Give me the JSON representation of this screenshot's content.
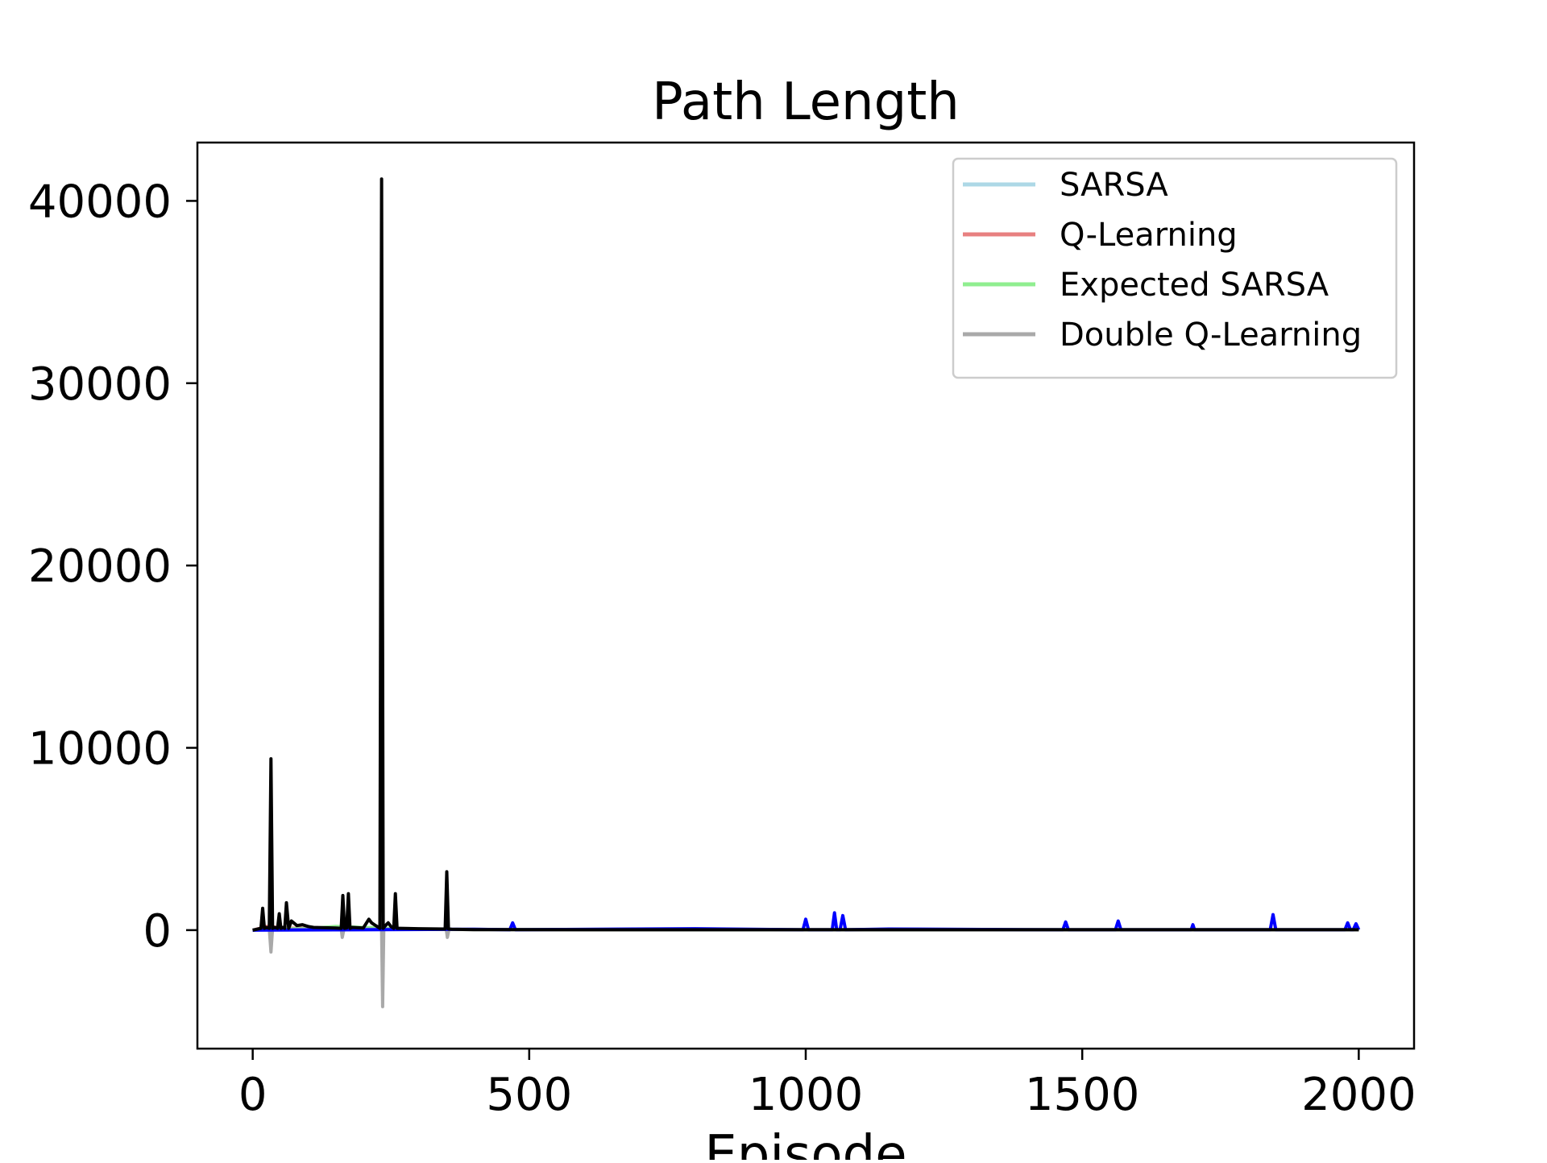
{
  "chart_data": {
    "type": "line",
    "title": "Path Length",
    "xlabel": "Episode",
    "ylabel": "",
    "xlim": [
      -100,
      2100
    ],
    "ylim": [
      -6500,
      43200
    ],
    "xticks": [
      0,
      500,
      1000,
      1500,
      2000
    ],
    "xtick_labels": [
      "0",
      "500",
      "1000",
      "1500",
      "2000"
    ],
    "yticks": [
      0,
      10000,
      20000,
      30000,
      40000
    ],
    "ytick_labels": [
      "0",
      "10000",
      "20000",
      "30000",
      "40000"
    ],
    "grid": false,
    "legend_position": "top-right",
    "legend": [
      {
        "label": "SARSA",
        "color": "#add8e6"
      },
      {
        "label": "Q-Learning",
        "color": "#e88080"
      },
      {
        "label": "Expected SARSA",
        "color": "#90ee90"
      },
      {
        "label": "Double Q-Learning",
        "color": "#a9a9a9"
      }
    ],
    "series": [
      {
        "name": "SARSA",
        "color": "#add8e6",
        "x": [
          0,
          25,
          100,
          300,
          600,
          1000,
          1500,
          2000
        ],
        "y": [
          0,
          150,
          80,
          40,
          30,
          20,
          20,
          20
        ]
      },
      {
        "name": "Q-Learning",
        "color": "#e88080",
        "x": [
          0,
          25,
          60,
          120,
          200,
          300,
          500,
          1000,
          2000
        ],
        "y": [
          0,
          200,
          120,
          80,
          60,
          40,
          30,
          20,
          20
        ]
      },
      {
        "name": "Expected SARSA",
        "color": "#90ee90",
        "x": [
          0,
          30,
          100,
          150,
          300,
          600,
          1000,
          2000
        ],
        "y": [
          0,
          100,
          80,
          200,
          40,
          30,
          20,
          20
        ]
      },
      {
        "name": "Double Q-Learning",
        "color": "#a9a9a9",
        "x": [
          0,
          20,
          30,
          33,
          36,
          60,
          160,
          162,
          165,
          233,
          235,
          237,
          260,
          350,
          352,
          355,
          500,
          2000
        ],
        "y": [
          0,
          50,
          100,
          -1200,
          100,
          50,
          50,
          -400,
          50,
          50,
          -4200,
          50,
          50,
          50,
          -400,
          50,
          30,
          20
        ]
      },
      {
        "color": "#0000ff",
        "x": [
          0,
          200,
          400,
          465,
          470,
          475,
          800,
          995,
          1000,
          1005,
          1048,
          1052,
          1056,
          1062,
          1067,
          1072,
          1150,
          1465,
          1470,
          1475,
          1560,
          1565,
          1570,
          1697,
          1700,
          1703,
          1840,
          1845,
          1850,
          1975,
          1980,
          1985,
          1990,
          1995,
          2000
        ],
        "y": [
          0,
          20,
          50,
          20,
          400,
          20,
          80,
          20,
          600,
          20,
          20,
          950,
          20,
          20,
          800,
          20,
          60,
          20,
          450,
          20,
          20,
          500,
          20,
          20,
          300,
          20,
          20,
          850,
          20,
          20,
          400,
          20,
          20,
          350,
          20
        ]
      },
      {
        "color": "#000000",
        "x": [
          0,
          15,
          18,
          21,
          25,
          30,
          33,
          36,
          40,
          45,
          48,
          51,
          55,
          58,
          61,
          65,
          70,
          80,
          90,
          100,
          110,
          150,
          160,
          163,
          166,
          170,
          173,
          176,
          180,
          200,
          210,
          215,
          220,
          230,
          233,
          236,
          240,
          245,
          250,
          255,
          258,
          261,
          265,
          300,
          348,
          351,
          354,
          360,
          400,
          600,
          1000,
          2000
        ],
        "y": [
          0,
          100,
          1200,
          100,
          150,
          100,
          9400,
          100,
          150,
          100,
          900,
          100,
          150,
          100,
          1500,
          100,
          500,
          250,
          300,
          200,
          150,
          120,
          100,
          1900,
          100,
          120,
          2000,
          100,
          150,
          120,
          600,
          400,
          300,
          100,
          41200,
          100,
          250,
          400,
          200,
          100,
          2000,
          100,
          100,
          80,
          60,
          3200,
          60,
          50,
          30,
          20,
          20,
          20
        ]
      }
    ]
  }
}
